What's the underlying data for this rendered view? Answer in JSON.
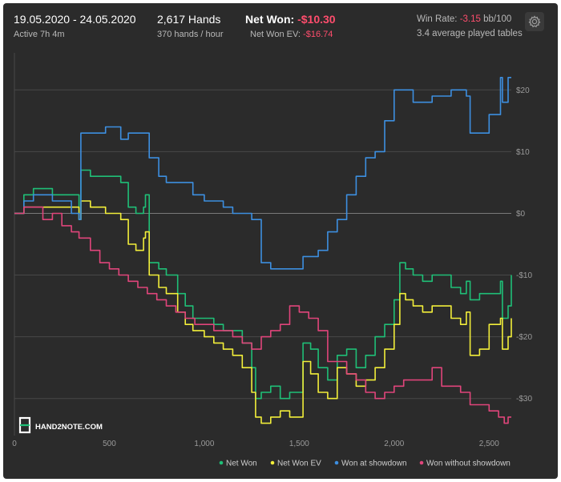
{
  "header": {
    "date_range": "19.05.2020 - 24.05.2020",
    "active_time": "Active 7h 4m",
    "hands": "2,617 Hands",
    "hands_rate": "370 hands / hour",
    "net_won_label": "Net Won:",
    "net_won_value": "-$10.30",
    "net_won_ev_label": "Net Won  EV:",
    "net_won_ev_value": "-$16.74",
    "win_rate_label": "Win Rate:",
    "win_rate_value": "-3.15",
    "win_rate_unit": "bb/100",
    "tables": "3.4 average played tables"
  },
  "logo": {
    "text": "HAND2NOTE.COM"
  },
  "icons": {
    "settings": "gear-icon"
  },
  "chart_data": {
    "type": "line",
    "xlim": [
      0,
      2617
    ],
    "ylim": [
      -36,
      26
    ],
    "x_ticks": [
      0,
      500,
      1000,
      1500,
      2000,
      2500
    ],
    "x_tick_labels": [
      "0",
      "500",
      "1,000",
      "1,500",
      "2,000",
      "2,500"
    ],
    "y_ticks": [
      20,
      10,
      0,
      -10,
      -20,
      -30
    ],
    "y_tick_labels": [
      "$20",
      "$10",
      "$0",
      "-$10",
      "-$20",
      "-$30"
    ],
    "grid": true,
    "legend_position": "bottom-right",
    "series": [
      {
        "name": "Net Won",
        "color": "#1fbf77",
        "points": [
          [
            0,
            0
          ],
          [
            50,
            3
          ],
          [
            100,
            4
          ],
          [
            200,
            3
          ],
          [
            300,
            3
          ],
          [
            340,
            -1
          ],
          [
            350,
            7
          ],
          [
            400,
            6
          ],
          [
            480,
            6
          ],
          [
            540,
            6
          ],
          [
            560,
            5
          ],
          [
            600,
            1
          ],
          [
            640,
            0
          ],
          [
            680,
            1
          ],
          [
            690,
            3
          ],
          [
            710,
            -8
          ],
          [
            760,
            -9
          ],
          [
            800,
            -10
          ],
          [
            860,
            -13
          ],
          [
            900,
            -15
          ],
          [
            940,
            -17
          ],
          [
            1000,
            -17
          ],
          [
            1050,
            -18
          ],
          [
            1100,
            -19
          ],
          [
            1150,
            -19
          ],
          [
            1200,
            -21
          ],
          [
            1250,
            -25
          ],
          [
            1270,
            -30
          ],
          [
            1300,
            -29
          ],
          [
            1350,
            -28
          ],
          [
            1400,
            -30
          ],
          [
            1450,
            -29
          ],
          [
            1520,
            -21
          ],
          [
            1560,
            -22
          ],
          [
            1600,
            -25
          ],
          [
            1650,
            -27
          ],
          [
            1700,
            -23
          ],
          [
            1750,
            -22
          ],
          [
            1800,
            -25
          ],
          [
            1850,
            -23
          ],
          [
            1900,
            -20
          ],
          [
            1950,
            -18
          ],
          [
            2000,
            -14
          ],
          [
            2030,
            -8
          ],
          [
            2060,
            -9
          ],
          [
            2100,
            -10
          ],
          [
            2150,
            -11
          ],
          [
            2200,
            -10
          ],
          [
            2300,
            -12
          ],
          [
            2350,
            -13
          ],
          [
            2380,
            -11
          ],
          [
            2400,
            -14
          ],
          [
            2450,
            -13
          ],
          [
            2500,
            -13
          ],
          [
            2560,
            -11
          ],
          [
            2570,
            -17
          ],
          [
            2600,
            -15
          ],
          [
            2617,
            -10
          ]
        ]
      },
      {
        "name": "Net Won  EV",
        "color": "#f2ee3a",
        "points": [
          [
            0,
            0
          ],
          [
            50,
            1
          ],
          [
            100,
            1
          ],
          [
            200,
            1
          ],
          [
            300,
            1
          ],
          [
            340,
            -1
          ],
          [
            350,
            2
          ],
          [
            400,
            1
          ],
          [
            480,
            0
          ],
          [
            540,
            0
          ],
          [
            560,
            -1
          ],
          [
            600,
            -5
          ],
          [
            640,
            -6
          ],
          [
            680,
            -4
          ],
          [
            690,
            -3
          ],
          [
            710,
            -10
          ],
          [
            760,
            -12
          ],
          [
            800,
            -13
          ],
          [
            860,
            -16
          ],
          [
            900,
            -18
          ],
          [
            940,
            -19
          ],
          [
            1000,
            -20
          ],
          [
            1050,
            -21
          ],
          [
            1100,
            -22
          ],
          [
            1150,
            -23
          ],
          [
            1200,
            -25
          ],
          [
            1250,
            -29
          ],
          [
            1270,
            -33
          ],
          [
            1300,
            -34
          ],
          [
            1350,
            -33
          ],
          [
            1400,
            -32
          ],
          [
            1450,
            -33
          ],
          [
            1520,
            -24
          ],
          [
            1560,
            -26
          ],
          [
            1600,
            -29
          ],
          [
            1650,
            -30
          ],
          [
            1700,
            -25
          ],
          [
            1750,
            -26
          ],
          [
            1800,
            -28
          ],
          [
            1850,
            -27
          ],
          [
            1900,
            -25
          ],
          [
            1950,
            -22
          ],
          [
            2000,
            -18
          ],
          [
            2030,
            -13
          ],
          [
            2060,
            -14
          ],
          [
            2100,
            -15
          ],
          [
            2150,
            -16
          ],
          [
            2200,
            -15
          ],
          [
            2300,
            -17
          ],
          [
            2350,
            -18
          ],
          [
            2380,
            -16
          ],
          [
            2400,
            -23
          ],
          [
            2450,
            -22
          ],
          [
            2500,
            -18
          ],
          [
            2560,
            -17
          ],
          [
            2570,
            -22
          ],
          [
            2600,
            -20
          ],
          [
            2617,
            -17
          ]
        ]
      },
      {
        "name": "Won at showdown",
        "color": "#3d8fe0",
        "points": [
          [
            0,
            0
          ],
          [
            50,
            2
          ],
          [
            100,
            3
          ],
          [
            200,
            2
          ],
          [
            300,
            0
          ],
          [
            340,
            -1
          ],
          [
            350,
            13
          ],
          [
            400,
            13
          ],
          [
            480,
            14
          ],
          [
            540,
            14
          ],
          [
            560,
            12
          ],
          [
            600,
            13
          ],
          [
            640,
            13
          ],
          [
            680,
            13
          ],
          [
            710,
            9
          ],
          [
            760,
            6
          ],
          [
            800,
            5
          ],
          [
            860,
            5
          ],
          [
            900,
            5
          ],
          [
            940,
            3
          ],
          [
            1000,
            2
          ],
          [
            1050,
            2
          ],
          [
            1100,
            1
          ],
          [
            1150,
            0
          ],
          [
            1200,
            0
          ],
          [
            1250,
            -1
          ],
          [
            1300,
            -8
          ],
          [
            1350,
            -9
          ],
          [
            1400,
            -9
          ],
          [
            1450,
            -9
          ],
          [
            1520,
            -7
          ],
          [
            1560,
            -7
          ],
          [
            1600,
            -6
          ],
          [
            1650,
            -3
          ],
          [
            1700,
            -1
          ],
          [
            1750,
            3
          ],
          [
            1800,
            6
          ],
          [
            1850,
            9
          ],
          [
            1900,
            10
          ],
          [
            1950,
            15
          ],
          [
            2000,
            20
          ],
          [
            2030,
            20
          ],
          [
            2100,
            18
          ],
          [
            2150,
            18
          ],
          [
            2200,
            19
          ],
          [
            2300,
            20
          ],
          [
            2380,
            19
          ],
          [
            2400,
            13
          ],
          [
            2450,
            13
          ],
          [
            2500,
            16
          ],
          [
            2560,
            22
          ],
          [
            2570,
            18
          ],
          [
            2600,
            22
          ],
          [
            2617,
            22
          ]
        ]
      },
      {
        "name": "Won without showdown",
        "color": "#e0457b",
        "points": [
          [
            0,
            0
          ],
          [
            50,
            1
          ],
          [
            100,
            1
          ],
          [
            150,
            -1
          ],
          [
            200,
            0
          ],
          [
            250,
            -2
          ],
          [
            300,
            -3
          ],
          [
            340,
            -4
          ],
          [
            400,
            -6
          ],
          [
            450,
            -8
          ],
          [
            500,
            -9
          ],
          [
            550,
            -10
          ],
          [
            600,
            -11
          ],
          [
            650,
            -12
          ],
          [
            700,
            -13
          ],
          [
            750,
            -14
          ],
          [
            800,
            -15
          ],
          [
            850,
            -16
          ],
          [
            900,
            -17
          ],
          [
            950,
            -18
          ],
          [
            1000,
            -18
          ],
          [
            1050,
            -19
          ],
          [
            1100,
            -19
          ],
          [
            1150,
            -20
          ],
          [
            1200,
            -21
          ],
          [
            1250,
            -22
          ],
          [
            1300,
            -20
          ],
          [
            1350,
            -19
          ],
          [
            1400,
            -18
          ],
          [
            1450,
            -15
          ],
          [
            1500,
            -16
          ],
          [
            1550,
            -17
          ],
          [
            1600,
            -19
          ],
          [
            1650,
            -24
          ],
          [
            1700,
            -24
          ],
          [
            1750,
            -26
          ],
          [
            1800,
            -27
          ],
          [
            1850,
            -29
          ],
          [
            1900,
            -30
          ],
          [
            1950,
            -29
          ],
          [
            2000,
            -28
          ],
          [
            2050,
            -27
          ],
          [
            2100,
            -27
          ],
          [
            2150,
            -27
          ],
          [
            2200,
            -25
          ],
          [
            2250,
            -28
          ],
          [
            2300,
            -28
          ],
          [
            2350,
            -29
          ],
          [
            2400,
            -31
          ],
          [
            2450,
            -31
          ],
          [
            2500,
            -32
          ],
          [
            2550,
            -33
          ],
          [
            2580,
            -34
          ],
          [
            2600,
            -33
          ],
          [
            2617,
            -33
          ]
        ]
      }
    ]
  }
}
